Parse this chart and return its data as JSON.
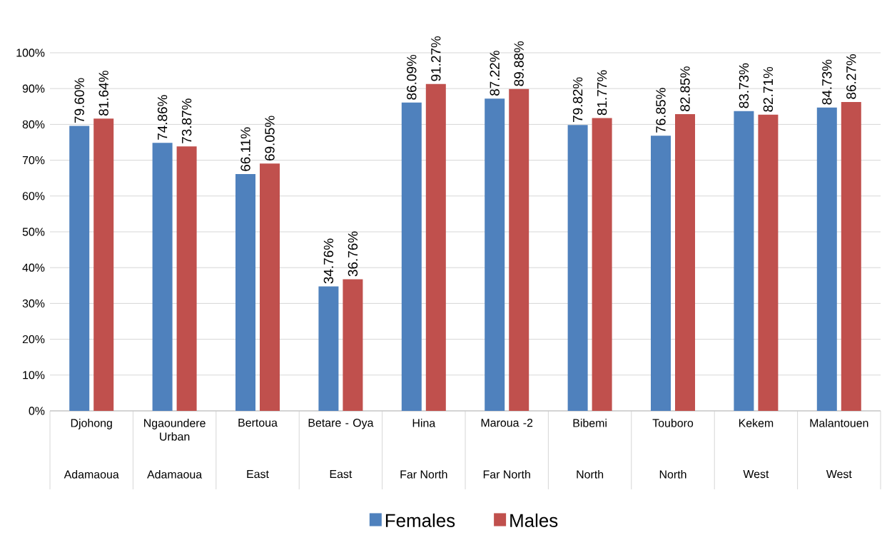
{
  "chart_data": {
    "type": "bar",
    "categories": [
      "Djohong",
      "Ngaoundere Urban",
      "Bertoua",
      "Betare - Oya",
      "Hina",
      "Maroua -2",
      "Bibemi",
      "Touboro",
      "Kekem",
      "Malantouen"
    ],
    "series": [
      {
        "name": "Females",
        "color": "#4f81bd",
        "values": [
          79.6,
          74.86,
          66.11,
          34.76,
          86.09,
          87.22,
          79.82,
          76.85,
          83.73,
          84.73
        ],
        "value_labels": [
          "79.60%",
          "74.86%",
          "66.11%",
          "34.76%",
          "86.09%",
          "87.22%",
          "79.82%",
          "76.85%",
          "83.73%",
          "84.73%"
        ]
      },
      {
        "name": "Males",
        "color": "#c0504d",
        "values": [
          81.64,
          73.87,
          69.05,
          36.76,
          91.27,
          89.88,
          81.77,
          82.85,
          82.71,
          86.27
        ],
        "value_labels": [
          "81.64%",
          "73.87%",
          "69.05%",
          "36.76%",
          "91.27%",
          "89.88%",
          "81.77%",
          "82.85%",
          "82.71%",
          "86.27%"
        ]
      }
    ],
    "ylim": [
      0,
      100
    ],
    "yticks": [
      {
        "value": 0,
        "label": "0%"
      },
      {
        "value": 10,
        "label": "10%"
      },
      {
        "value": 20,
        "label": "20%"
      },
      {
        "value": 30,
        "label": "30%"
      },
      {
        "value": 40,
        "label": "40%"
      },
      {
        "value": 50,
        "label": "50%"
      },
      {
        "value": 60,
        "label": "60%"
      },
      {
        "value": 70,
        "label": "70%"
      },
      {
        "value": 80,
        "label": "80%"
      },
      {
        "value": 90,
        "label": "90%"
      },
      {
        "value": 100,
        "label": "100%"
      }
    ],
    "grid": "y",
    "legend": "bottom",
    "annotations": [
      "Adamaoua",
      "Adamaoua",
      "East",
      "East",
      "Far North",
      "Far North",
      "North",
      "North",
      "West",
      "West"
    ]
  }
}
